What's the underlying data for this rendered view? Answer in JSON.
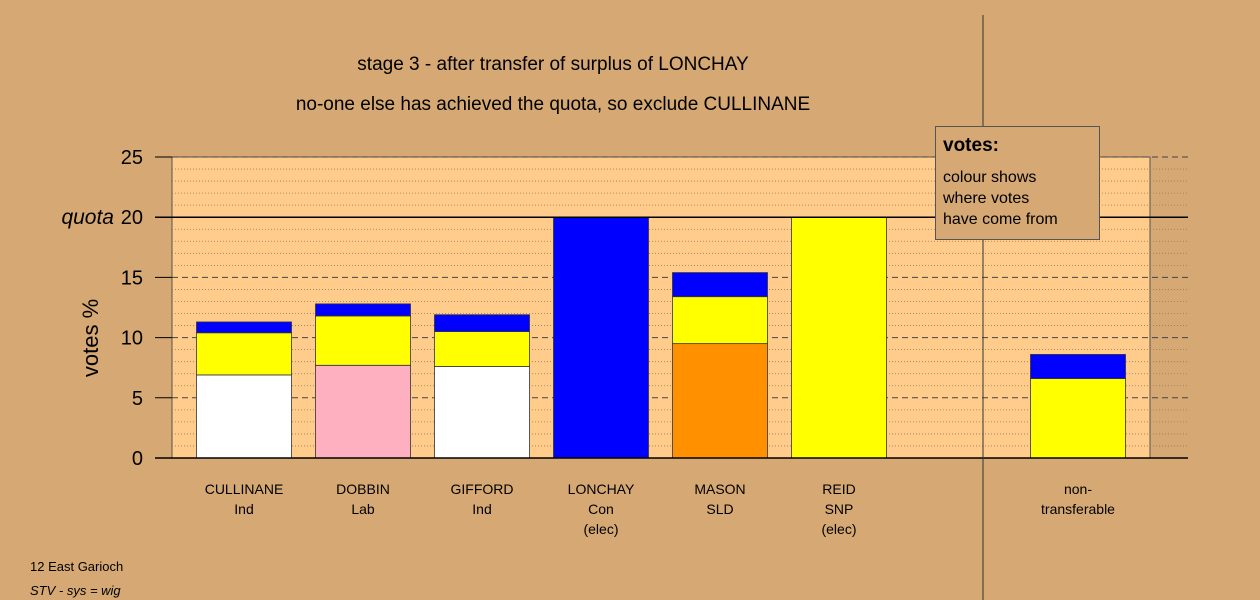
{
  "title": "stage 3 - after transfer of surplus of LONCHAY",
  "subtitle": "no-one else has achieved the quota, so exclude CULLINANE",
  "legend": {
    "title": "votes:",
    "lines": [
      "colour shows",
      "where votes",
      "have come from"
    ]
  },
  "footer": {
    "line1": "12 East Garioch",
    "line2": "STV - sys = wig"
  },
  "chart_data": {
    "type": "bar",
    "stacked": true,
    "ylabel": "votes %",
    "ylim": [
      0,
      25
    ],
    "yticks": [
      0,
      5,
      10,
      15,
      20,
      25
    ],
    "quota": 20,
    "quota_label": "quota",
    "categories": [
      {
        "name": "CULLINANE",
        "party": "Ind",
        "note": ""
      },
      {
        "name": "DOBBIN",
        "party": "Lab",
        "note": ""
      },
      {
        "name": "GIFFORD",
        "party": "Ind",
        "note": ""
      },
      {
        "name": "LONCHAY",
        "party": "Con",
        "note": "(elec)"
      },
      {
        "name": "MASON",
        "party": "SLD",
        "note": ""
      },
      {
        "name": "REID",
        "party": "SNP",
        "note": "(elec)"
      },
      {
        "name": "",
        "party": "",
        "note": ""
      },
      {
        "name": "non-",
        "party": "transferable",
        "note": ""
      }
    ],
    "bars": [
      {
        "segments": [
          {
            "value": 6.9,
            "color": "#ffffff"
          },
          {
            "value": 3.5,
            "color": "#ffff00"
          },
          {
            "value": 0.9,
            "color": "#0000ff"
          }
        ]
      },
      {
        "segments": [
          {
            "value": 7.7,
            "color": "#ffb0c0"
          },
          {
            "value": 4.1,
            "color": "#ffff00"
          },
          {
            "value": 1.0,
            "color": "#0000ff"
          }
        ]
      },
      {
        "segments": [
          {
            "value": 7.6,
            "color": "#ffffff"
          },
          {
            "value": 2.9,
            "color": "#ffff00"
          },
          {
            "value": 1.4,
            "color": "#0000ff"
          }
        ]
      },
      {
        "segments": [
          {
            "value": 20.0,
            "color": "#0000ff"
          }
        ]
      },
      {
        "segments": [
          {
            "value": 9.5,
            "color": "#ff9000"
          },
          {
            "value": 3.9,
            "color": "#ffff00"
          },
          {
            "value": 2.0,
            "color": "#0000ff"
          }
        ]
      },
      {
        "segments": [
          {
            "value": 20.0,
            "color": "#ffff00"
          }
        ]
      },
      {
        "segments": []
      },
      {
        "segments": [
          {
            "value": 6.6,
            "color": "#ffff00"
          },
          {
            "value": 2.0,
            "color": "#0000ff"
          }
        ]
      }
    ],
    "grid": true,
    "legend_position": "top-right",
    "colors": {
      "plot_bg": "#ffcc8c",
      "page_bg": "#d5a874"
    }
  }
}
